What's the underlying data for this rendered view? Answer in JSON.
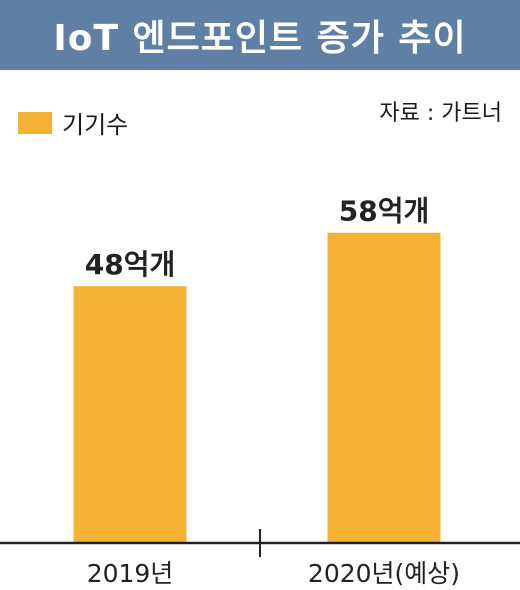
{
  "title": "IoT 엔드포인트 증가 추이",
  "source": "자료 : 가트너",
  "colors": {
    "title_bg": "#5f7fa4",
    "bar": "#f5b335",
    "axis": "#222222"
  },
  "chart_data": {
    "type": "bar",
    "categories": [
      "2019년",
      "2020년(예상)"
    ],
    "series": [
      {
        "name": "기기수",
        "values": [
          48,
          58
        ],
        "data_labels": [
          "48억개",
          "58억개"
        ]
      }
    ],
    "unit": "억개",
    "legend": "top-left",
    "grid": false
  }
}
